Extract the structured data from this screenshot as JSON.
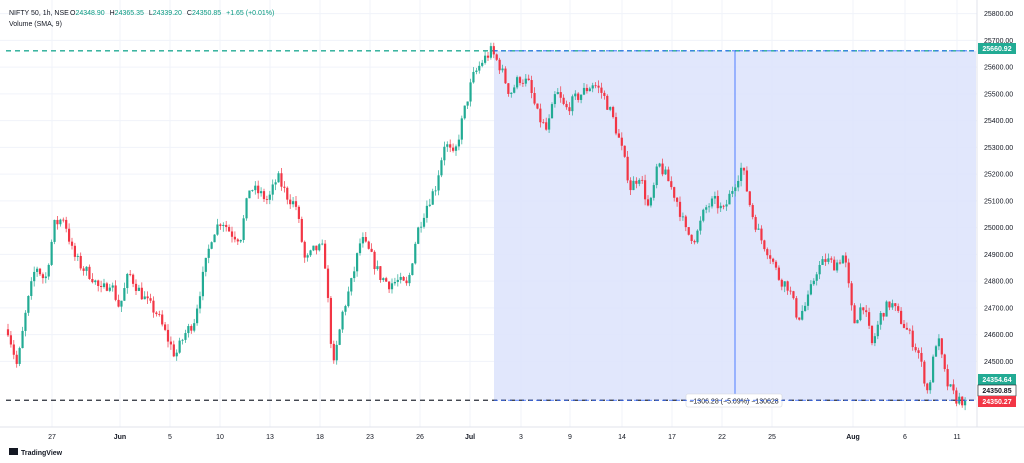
{
  "header": {
    "symbol_line": "NIFTY 50, 1h, NSE",
    "ohlc_label_o": "O",
    "ohlc_o": "24348.90",
    "ohlc_label_h": "H",
    "ohlc_h": "24365.35",
    "ohlc_label_l": "L",
    "ohlc_l": "24339.20",
    "ohlc_label_c": "C",
    "ohlc_c": "24350.85",
    "change": "+1.65 (+0.01%)",
    "volume_line": "Volume (SMA, 9)"
  },
  "branding": {
    "logo_text": "TradingView"
  },
  "measure": {
    "label": "−1306.28 (−5.09%) −130628"
  },
  "price_labels": {
    "top": "25660.92",
    "mid1": "24354.64",
    "mid2": "24350.85",
    "bottom": "24350.27"
  },
  "colors": {
    "up": "#22ab94",
    "down": "#f23645",
    "range_fill": "#dce3fb",
    "range_line": "#2962ff",
    "level_line": "#22ab94",
    "grid": "#f0f3fa",
    "axis_text": "#131722"
  },
  "chart_data": {
    "type": "candlestick",
    "title": "NIFTY 50, 1h, NSE",
    "y_ticks": [
      24500,
      24600,
      24700,
      24800,
      24900,
      25000,
      25100,
      25200,
      25300,
      25400,
      25500,
      25600,
      25700,
      25800
    ],
    "y_tick_labels": [
      "24500.00",
      "24600.00",
      "24700.00",
      "24800.00",
      "24900.00",
      "25000.00",
      "25100.00",
      "25200.00",
      "25300.00",
      "25400.00",
      "25500.00",
      "25600.00",
      "25700.00",
      "25800.00"
    ],
    "ylim": [
      24250,
      25850
    ],
    "x_ticks": [
      {
        "label": "27",
        "bold": false
      },
      {
        "label": "Jun",
        "bold": true
      },
      {
        "label": "5",
        "bold": false
      },
      {
        "label": "10",
        "bold": false
      },
      {
        "label": "13",
        "bold": false
      },
      {
        "label": "18",
        "bold": false
      },
      {
        "label": "23",
        "bold": false
      },
      {
        "label": "26",
        "bold": false
      },
      {
        "label": "Jul",
        "bold": true
      },
      {
        "label": "3",
        "bold": false
      },
      {
        "label": "9",
        "bold": false
      },
      {
        "label": "14",
        "bold": false
      },
      {
        "label": "17",
        "bold": false
      },
      {
        "label": "22",
        "bold": false
      },
      {
        "label": "25",
        "bold": false
      },
      {
        "label": "Aug",
        "bold": true
      },
      {
        "label": "6",
        "bold": false
      },
      {
        "label": "11",
        "bold": false
      }
    ],
    "levels": [
      {
        "name": "high",
        "value": 25660.92
      },
      {
        "name": "low",
        "value": 24354.64
      }
    ],
    "measured_change": {
      "from": 25660.92,
      "to": 24354.64,
      "points": -1306.28,
      "percent": -5.09
    },
    "price_path": [
      24620,
      24480,
      24700,
      24860,
      24800,
      25010,
      25040,
      24900,
      24850,
      24820,
      24760,
      24800,
      24700,
      24830,
      24770,
      24720,
      24680,
      24600,
      24520,
      24600,
      24650,
      24820,
      24980,
      25030,
      24980,
      24960,
      25150,
      25130,
      25100,
      25190,
      25120,
      25080,
      24870,
      24920,
      24920,
      24470,
      24680,
      24800,
      24960,
      24900,
      24820,
      24790,
      24800,
      24780,
      24980,
      25080,
      25150,
      25320,
      25260,
      25420,
      25560,
      25620,
      25660,
      25600,
      25500,
      25560,
      25540,
      25420,
      25360,
      25510,
      25440,
      25480,
      25510,
      25540,
      25500,
      25420,
      25300,
      25150,
      25200,
      25060,
      25240,
      25180,
      25100,
      24980,
      24960,
      25070,
      25100,
      25060,
      25150,
      25230,
      25060,
      24960,
      24900,
      24810,
      24780,
      24660,
      24720,
      24840,
      24880,
      24860,
      24900,
      24640,
      24720,
      24560,
      24680,
      24720,
      24660,
      24600,
      24530,
      24380,
      24600,
      24420,
      24360,
      24352
    ]
  }
}
